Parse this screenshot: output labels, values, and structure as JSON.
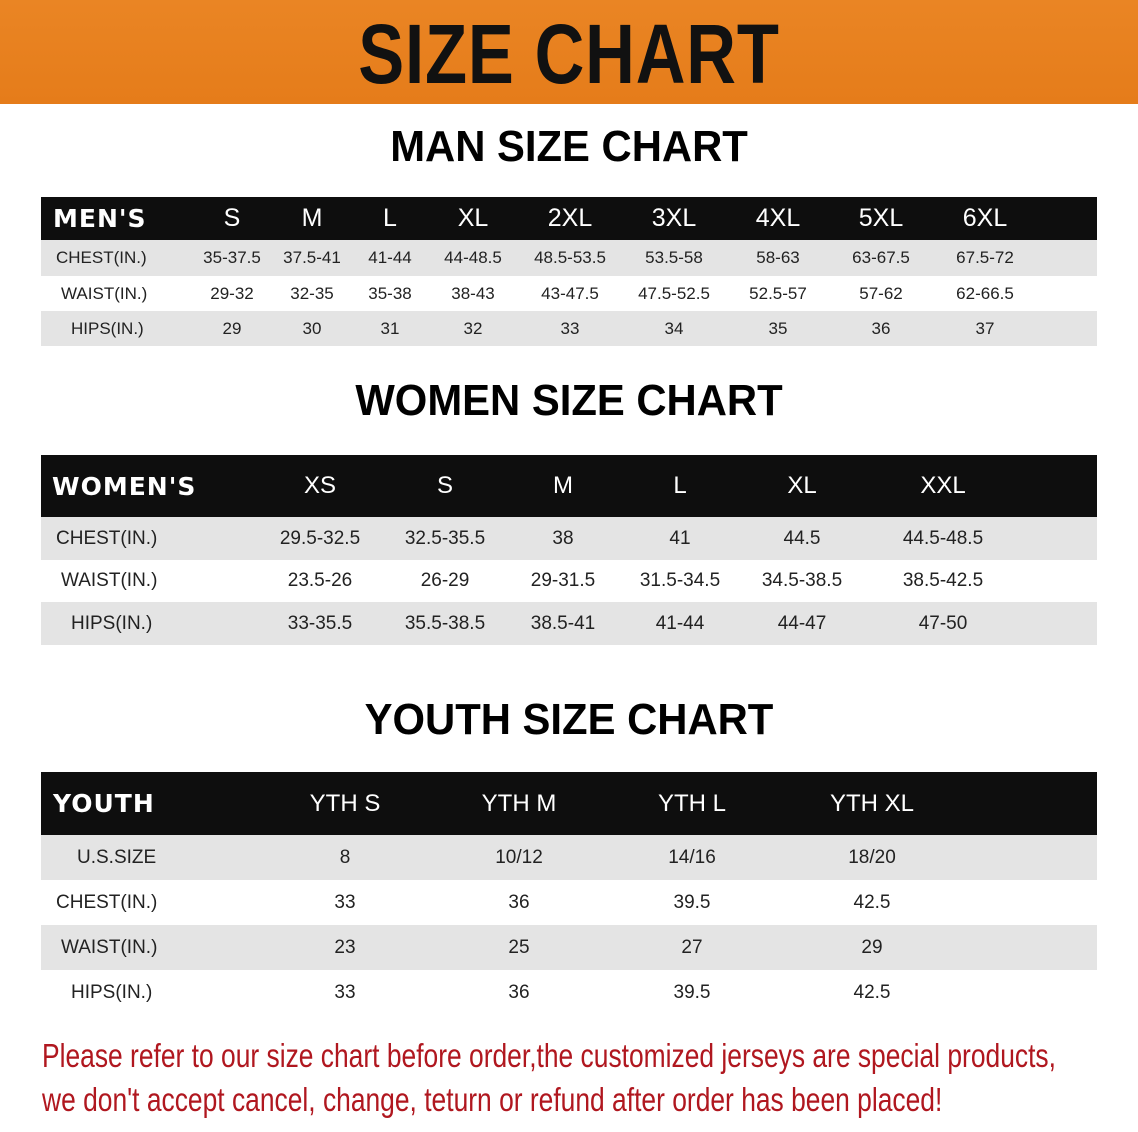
{
  "banner": {
    "title": "SIZE CHART",
    "color": "#e8801e"
  },
  "men": {
    "title": "MAN SIZE CHART",
    "header": [
      "MEN'S",
      "S",
      "M",
      "L",
      "XL",
      "2XL",
      "3XL",
      "4XL",
      "5XL",
      "6XL"
    ],
    "rows": [
      [
        "CHEST(IN.)",
        "35-37.5",
        "37.5-41",
        "41-44",
        "44-48.5",
        "48.5-53.5",
        "53.5-58",
        "58-63",
        "63-67.5",
        "67.5-72"
      ],
      [
        "WAIST(IN.)",
        "29-32",
        "32-35",
        "35-38",
        "38-43",
        "43-47.5",
        "47.5-52.5",
        "52.5-57",
        "57-62",
        "62-66.5"
      ],
      [
        "HIPS(IN.)",
        "29",
        "30",
        "31",
        "32",
        "33",
        "34",
        "35",
        "36",
        "37"
      ]
    ]
  },
  "women": {
    "title": "WOMEN SIZE CHART",
    "header": [
      "WOMEN'S",
      "XS",
      "S",
      "M",
      "L",
      "XL",
      "XXL"
    ],
    "rows": [
      [
        "CHEST(IN.)",
        "29.5-32.5",
        "32.5-35.5",
        "38",
        "41",
        "44.5",
        "44.5-48.5"
      ],
      [
        "WAIST(IN.)",
        "23.5-26",
        "26-29",
        "29-31.5",
        "31.5-34.5",
        "34.5-38.5",
        "38.5-42.5"
      ],
      [
        "HIPS(IN.)",
        "33-35.5",
        "35.5-38.5",
        "38.5-41",
        "41-44",
        "44-47",
        "47-50"
      ]
    ]
  },
  "youth": {
    "title": "YOUTH SIZE CHART",
    "header": [
      "YOUTH",
      "YTH S",
      "YTH M",
      "YTH L",
      "YTH XL"
    ],
    "rows": [
      [
        "U.S.SIZE",
        "8",
        "10/12",
        "14/16",
        "18/20"
      ],
      [
        "CHEST(IN.)",
        "33",
        "36",
        "39.5",
        "42.5"
      ],
      [
        "WAIST(IN.)",
        "23",
        "25",
        "27",
        "29"
      ],
      [
        "HIPS(IN.)",
        "33",
        "36",
        "39.5",
        "42.5"
      ]
    ]
  },
  "note": {
    "line1": "Please refer to our size chart before order,the customized jerseys are special products,",
    "line2": "we don't accept cancel, change, teturn or refund after order has been placed!",
    "color": "#b0171f"
  }
}
